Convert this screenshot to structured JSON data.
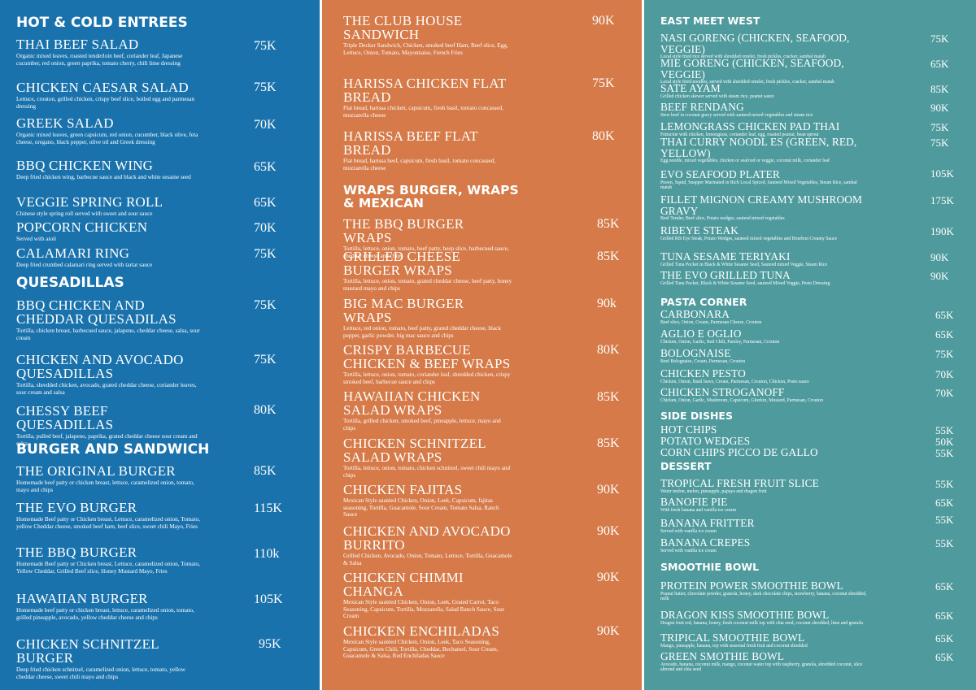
{
  "col1": {
    "sections": {
      "hot_cold": "HOT & COLD ENTREES",
      "quesadillas": "QUESADILLAS",
      "burger": "BURGER AND SANDWICH"
    },
    "items": [
      {
        "name": "THAI BEEF SALAD",
        "price": "75K",
        "desc": "Organic mixed leaves, roasted tenderloin beef, coriander leaf, Japanese cucumber, red onion, green paprika, tomato cherry, chili lime dressing"
      },
      {
        "name": "CHICKEN CAESAR SALAD",
        "price": "75K",
        "desc": "Lettuce, crouton, grilled chicken, crispy beef slice, boiled egg and parmesan dressing"
      },
      {
        "name": "GREEK SALAD",
        "price": "70K",
        "desc": "Organic mixed leaves, green capsicum, red onion, cucumber, black olive, feta cheese, oregano, black pepper, olive oil and Greek dressing"
      },
      {
        "name": "BBQ CHICKEN WING",
        "price": "65K",
        "desc": "Deep fried chicken wing, barbecue sauce and black and white sesame seed"
      },
      {
        "name": "VEGGIE SPRING ROLL",
        "price": "65K",
        "desc": "Chinese style spring roll served with sweet and sour sauce"
      },
      {
        "name": "POPCORN CHICKEN",
        "price": "70K",
        "desc": "Served with aioli"
      },
      {
        "name": "CALAMARI RING",
        "price": "75K",
        "desc": "Deep fried crumbed calamari ring served with tartar sauce"
      },
      {
        "name": "BBQ CHICKEN AND CHEDDAR QUESADILAS",
        "price": "75K",
        "desc": "Tortilla, chicken breast, barbecued sauce, jalapeno, cheddar cheese, salsa, sour cream"
      },
      {
        "name": "CHICKEN AND AVOCADO QUESADILLAS",
        "price": "75K",
        "desc": "Tortilla, shredded chicken, avocado, grated cheddar cheese, coriander leaves, sour cream and salsa"
      },
      {
        "name": "CHESSY BEEF QUESADILLAS",
        "price": "80K",
        "desc": "Tortilla, pulled beef, jalapeno, paprika, grated cheddar cheese sour cream and salsa"
      },
      {
        "name": "THE ORIGINAL BURGER",
        "price": "85K",
        "desc": "Homemade beef patty or chicken breast, lettuce, caramelized onion, tomato, mayo and chips"
      },
      {
        "name": "THE EVO BURGER",
        "price": "115K",
        "desc": "Homemade Beef patty or Chicken breast, Lettuce, caramelized onion, Tomato, yellow Cheddar cheese, smoked beef ham, beef slice, sweet chili Mayo, Fries"
      },
      {
        "name": "THE BBQ BURGER",
        "price": "110k",
        "desc": "Homemade Beef patty or Chicken breast, Lettuce, caramelized onion, Tomato, Yellow Cheddar, Grilled Beef slice, Honey Mustard Mayo, Fries"
      },
      {
        "name": "HAWAIIAN BURGER",
        "price": "105K",
        "desc": "Homemade beef patty or chicken breast, lettuce, caramelized onion, tomato, grilled pineapple, avocado, yellow cheddar cheese and chips"
      },
      {
        "name": "CHICKEN SCHNITZEL BURGER",
        "price": "95K",
        "desc": "Deep fried chicken schnitzel, caramelized onion, lettuce, tomato, yellow cheddar cheese, sweet chili mayo and chips"
      }
    ]
  },
  "col2": {
    "sections": {
      "wraps": "WRAPS BURGER, WRAPS & MEXICAN"
    },
    "items": [
      {
        "name": "THE CLUB HOUSE SANDWICH",
        "price": "90K",
        "desc": "Triple Decker Sandwich, Chicken, smoked beef Ham, Beef slice, Egg, Lettuce, Onion, Tomato, Mayonnaise, French Fries"
      },
      {
        "name": "HARISSA CHICKEN FLAT BREAD",
        "price": "75K",
        "desc": "Flat bread, harissa chicken, capsicum, fresh basil, tomato concassed, mozzarella cheese"
      },
      {
        "name": "HARISSA BEEF FLAT BREAD",
        "price": "80K",
        "desc": "Flat bread, harissa beef, capsicum, fresh basil, tomato concassed, mozzarella cheese"
      },
      {
        "name": "THE BBQ BURGER WRAPS",
        "price": "85K",
        "desc": "Tortilla, lettuce, onion, tomato, beef patty, beep slice, barbecued sauce, cheddar cheese and chips"
      },
      {
        "name": "GRILLED CHEESE BURGER WRAPS",
        "price": "85K",
        "desc": "Tortilla, lettuce, onion, tomato, grated cheddar cheese, beef patty, honey mustard mayo and chips"
      },
      {
        "name": "BIG MAC BURGER WRAPS",
        "price": "90k",
        "desc": "Lettuce, red onion, tomato, beef patty, grated cheddar cheese, black pepper, garlic powder, big mac sauce and chips"
      },
      {
        "name": "CRISPY BARBECUE CHICKEN & BEEF WRAPS",
        "price": "80K",
        "desc": "Tortilla, lettuce, onion, tomato, coriander leaf, shredded chicken, crispy smoked beef, barbecue sauce and chips"
      },
      {
        "name": "HAWAIIAN CHICKEN SALAD WRAPS",
        "price": "85K",
        "desc": "Tortilla, grilled chicken, smoked beef, pineapple, lettuce, mayo and chips"
      },
      {
        "name": "CHICKEN SCHNITZEL SALAD WRAPS",
        "price": "85K",
        "desc": "Tortilla, lettuce, onion, tomato, chicken schnitzel, sweet chili mayo and chips"
      },
      {
        "name": "CHICKEN FAJITAS",
        "price": "90K",
        "desc": "Mexican Style sautéed Chicken, Onion, Leek, Capsicum, fajitas seasoning, Tortilla, Guacamole, Sour Cream, Tomato Salsa, Ranch Sauce"
      },
      {
        "name": "CHICKEN AND AVOCADO BURRITO",
        "price": "90K",
        "desc": "Grilled Chicken, Avocado, Onion, Tomato, Lettuce, Tortilla, Guacamole & Salsa"
      },
      {
        "name": "CHICKEN CHIMMI CHANGA",
        "price": "90K",
        "desc": "Mexican Style sautéed Chicken, Onion, Leek, Grated Carrot, Taco Seasoning, Capsicum, Tortilla, Mozzarella, Salad Ranch Sauce, Sour Cream"
      },
      {
        "name": "CHICKEN ENCHILADAS",
        "price": "90K",
        "desc": "Mexican Style sautéed Chicken, Onion, Leek, Taco Seasoning, Capsicum, Green Chili, Tortilla, Cheddar, Bechamel, Sour Cream, Guacamole & Salsa, Red Enchiladas Sauce"
      }
    ]
  },
  "col3": {
    "sections": {
      "east": "EAST MEET WEST",
      "pasta": "PASTA CORNER",
      "side": "SIDE DISHES",
      "dessert": "DESSERT",
      "smoothie": "SMOOTHIE BOWL"
    },
    "items": [
      {
        "name": "NASI GORENG (chicken, seafood, veggie)",
        "price": "75K",
        "desc": "Local style fried rice served with shredded omelet, fresh pickles, cracker, sambal matah"
      },
      {
        "name": "MIE GORENG (chicken, seafood, veggie)",
        "price": "65K",
        "desc": "Local style fried noodles, served with shredded omelet, fresh pickles, cracker, sambal matah"
      },
      {
        "name": "SATE AYAM",
        "price": "85K",
        "desc": "Grilled chicken skewer served with steam rice, peanut sauce"
      },
      {
        "name": "BEEF RENDANG",
        "price": "90K",
        "desc": "Stew beef in coconut gravy served with sauteed mixed vegetables and steam rice"
      },
      {
        "name": "LEMONGRASS CHICKEN PAD THAI",
        "price": "75K",
        "desc": "Fettucine with chicken, lemongrass, coriander leaf, egg, roasted peanut, bean sprout"
      },
      {
        "name": "THAI CURRY NOODL ES (green, red, yellow)",
        "price": "75K",
        "desc": "Egg noodle, mixed vegetables, chicken or seafood or veggie, coconut milk, coriander leaf"
      },
      {
        "name": "EVO SEAFOOD PLATER",
        "price": "105K",
        "desc": "Prawn, Squid, Snapper Marinated in Rich Local Spiced, Sauteed Mixed Vegetables, Steam Rice, sambal matah"
      },
      {
        "name": "FILLET MIGNON CREAMY MUSHROOM GRAVY",
        "price": "175K",
        "desc": "Beef Tender, Beef slice, Potato wedges, sauteed mixed vegetables"
      },
      {
        "name": "RIBEYE STEAK",
        "price": "190K",
        "desc": "Grilled Rib Eye Steak, Potato Wedges, sauteed mixed vegetables and Bourbon Creamy Sauce"
      },
      {
        "name": "TUNA SESAME TERIYAKI",
        "price": "90K",
        "desc": "Grilled Tuna Pocket in Black & White Sesame Seed, Sauteed mixed Veggie, Steam Rice"
      },
      {
        "name": "THE EVO GRILLED TUNA",
        "price": "90K",
        "desc": "Grilled Tuna Pocket, Black & White Sesame Seed, sauteed Mixed Veggie, Pesto Dressing"
      },
      {
        "name": "CARBONARA",
        "price": "65K",
        "desc": "Beef slice, Onion, Cream, Parmesan Cheese, Crouton"
      },
      {
        "name": "AGLIO E OGLIO",
        "price": "65K",
        "desc": "Chicken, Onion, Garlic, Red Chili, Parsley, Parmesan, Crouton"
      },
      {
        "name": "BOLOGNAISE",
        "price": "75K",
        "desc": "Beef Bolognaise, Cream, Parmesan, Crouton"
      },
      {
        "name": "CHICKEN PESTO",
        "price": "70K",
        "desc": "Chicken, Onion, Basil leave, Cream, Parmesan, Crouton, Chicken, Pesto sauce"
      },
      {
        "name": "CHICKEN STROGANOFF",
        "price": "70K",
        "desc": "Chicken, Onion, Garlic, Mushroom, Capsicum, Gherkin, Mustard, Parmesan, Crouton"
      },
      {
        "name": "HOT CHIPS",
        "price": "55K",
        "desc": ""
      },
      {
        "name": "POTATO WEDGES",
        "price": "50K",
        "desc": ""
      },
      {
        "name": "CORN CHIPS PICCO DE GALLO",
        "price": "55K",
        "desc": ""
      },
      {
        "name": "TROPICAL FRESH FRUIT SLICE",
        "price": "55K",
        "desc": "Water melon, melon, pineapple, papaya and dragon fruit"
      },
      {
        "name": "BANOFIE PIE",
        "price": "65K",
        "desc": "With fresh banana and vanilla ice cream"
      },
      {
        "name": "BANANA FRITTER",
        "price": "55K",
        "desc": "Served with vanilla ice cream"
      },
      {
        "name": "BANANA CREPES",
        "price": "55K",
        "desc": "Served with vanilla ice cream"
      },
      {
        "name": "PROTEIN POWER SMOOTHIE BOWL",
        "price": "65K",
        "desc": "Peanut butter, chocolate powder, granola, honey, dark chocolate chips, strawberry, banana, coconut shredded, milk"
      },
      {
        "name": "DRAGON KISS SMOOTHIE BOWL",
        "price": "65K",
        "desc": "Dragon fruit red, banana, honey, fresh coconut milk top with chia seed, coconut shredded, lime and granola"
      },
      {
        "name": "TRIPICAL SMOOTHIE BOWL",
        "price": "65K",
        "desc": "Mango, pineapple, banana, top with seasonal fresh fruit and coconut shredded"
      },
      {
        "name": "GREEN SMOTHIE BOWL",
        "price": "65K",
        "desc": "Avocado, banana, coconut milk, mango, coconut water top with raspberry, granola, shredded coconut, slice almond and chia seed"
      }
    ]
  }
}
